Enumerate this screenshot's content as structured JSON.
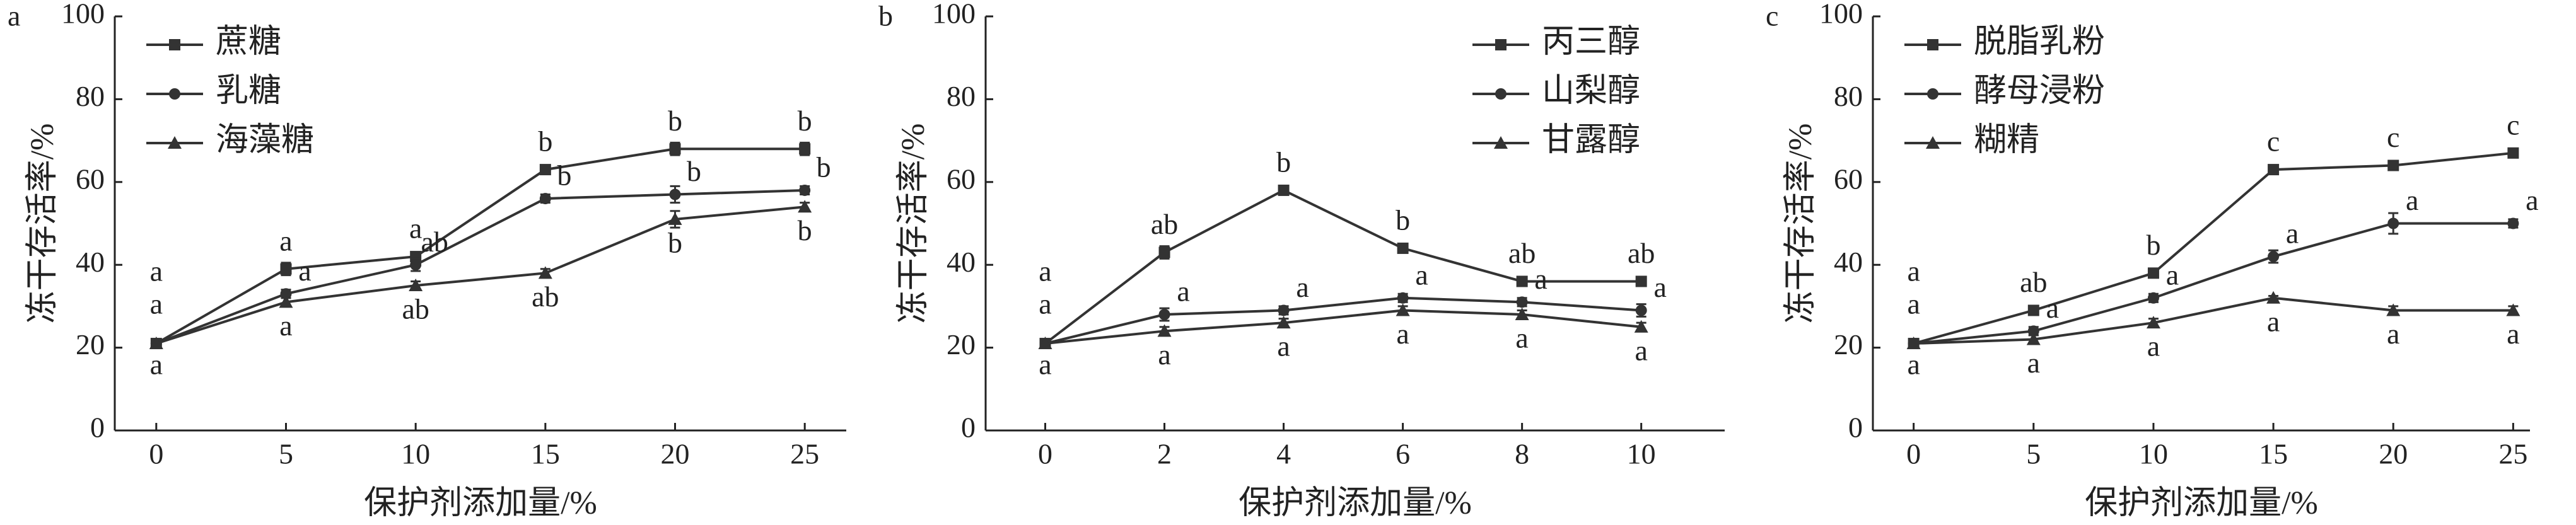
{
  "chart_data": [
    {
      "type": "line",
      "panel": "a",
      "ylabel": "冻干存活率/%",
      "xlabel": "保护剂添加量/%",
      "x": [
        0,
        5,
        10,
        15,
        20,
        25
      ],
      "xlim": [
        -1.6,
        26.6
      ],
      "xticks": [
        0,
        5,
        10,
        15,
        20,
        25
      ],
      "ylim": [
        0,
        100
      ],
      "yticks": [
        0,
        20,
        40,
        60,
        80,
        100
      ],
      "legend": "upper left",
      "series": [
        {
          "name": "蔗糖",
          "color": "#333333",
          "marker": "square",
          "values": [
            21,
            39,
            42,
            63,
            68,
            68
          ],
          "errors": [
            1,
            1.5,
            1,
            1,
            1.5,
            1.5
          ],
          "letters": [
            "a",
            "a",
            "a",
            "b",
            "b",
            "b"
          ]
        },
        {
          "name": "乳糖",
          "color": "#333333",
          "marker": "circle",
          "values": [
            21,
            33,
            40,
            56,
            57,
            58
          ],
          "errors": [
            1,
            1,
            1.5,
            1,
            2,
            1
          ],
          "letters": [
            "a",
            "a",
            "ab",
            "b",
            "b",
            "b"
          ]
        },
        {
          "name": "海藻糖",
          "color": "#333333",
          "marker": "triangle",
          "values": [
            21,
            31,
            35,
            38,
            51,
            54
          ],
          "errors": [
            1,
            1,
            1,
            1,
            2,
            1
          ],
          "letters": [
            "a",
            "a",
            "ab",
            "ab",
            "b",
            "b"
          ]
        }
      ]
    },
    {
      "type": "line",
      "panel": "b",
      "ylabel": "冻干存活率/%",
      "xlabel": "保护剂添加量/%",
      "x": [
        0,
        2,
        4,
        6,
        8,
        10
      ],
      "xlim": [
        -1,
        11.4
      ],
      "xticks": [
        0,
        2,
        4,
        6,
        8,
        10
      ],
      "ylim": [
        0,
        100
      ],
      "yticks": [
        0,
        20,
        40,
        60,
        80,
        100
      ],
      "legend": "upper right",
      "series": [
        {
          "name": "丙三醇",
          "color": "#333333",
          "marker": "square",
          "values": [
            21,
            43,
            58,
            44,
            36,
            36
          ],
          "errors": [
            1,
            1.5,
            1,
            1,
            1,
            1
          ],
          "letters": [
            "a",
            "ab",
            "b",
            "b",
            "ab",
            "ab"
          ]
        },
        {
          "name": "山梨醇",
          "color": "#333333",
          "marker": "circle",
          "values": [
            21,
            28,
            29,
            32,
            31,
            29
          ],
          "errors": [
            1,
            1.5,
            1,
            1,
            1,
            1.5
          ],
          "letters": [
            "a",
            "a",
            "a",
            "a",
            "a",
            "a"
          ]
        },
        {
          "name": "甘露醇",
          "color": "#333333",
          "marker": "triangle",
          "values": [
            21,
            24,
            26,
            29,
            28,
            25
          ],
          "errors": [
            1,
            1,
            1,
            1,
            1,
            1
          ],
          "letters": [
            "a",
            "a",
            "a",
            "a",
            "a",
            "a"
          ]
        }
      ]
    },
    {
      "type": "line",
      "panel": "c",
      "ylabel": "冻干存活率/%",
      "xlabel": "保护剂添加量/%",
      "x": [
        0,
        5,
        10,
        15,
        20,
        25
      ],
      "xlim": [
        -1.7,
        25.7
      ],
      "xticks": [
        0,
        5,
        10,
        15,
        20,
        25
      ],
      "ylim": [
        0,
        100
      ],
      "yticks": [
        0,
        20,
        40,
        60,
        80,
        100
      ],
      "legend": "upper left",
      "series": [
        {
          "name": "脱脂乳粉",
          "color": "#333333",
          "marker": "square",
          "values": [
            21,
            29,
            38,
            63,
            64,
            67
          ],
          "errors": [
            1,
            1,
            1,
            1,
            0.5,
            0.5
          ],
          "letters": [
            "a",
            "ab",
            "b",
            "c",
            "c",
            "c"
          ]
        },
        {
          "name": "酵母浸粉",
          "color": "#333333",
          "marker": "circle",
          "values": [
            21,
            24,
            32,
            42,
            50,
            50
          ],
          "errors": [
            1,
            1,
            1,
            1.5,
            2.5,
            1
          ],
          "letters": [
            "a",
            "a",
            "a",
            "a",
            "a",
            "a"
          ]
        },
        {
          "name": "糊精",
          "color": "#333333",
          "marker": "triangle",
          "values": [
            21,
            22,
            26,
            32,
            29,
            29
          ],
          "errors": [
            1,
            1,
            1,
            0.5,
            1,
            1
          ],
          "letters": [
            "a",
            "a",
            "a",
            "a",
            "a",
            "a"
          ]
        }
      ]
    }
  ]
}
